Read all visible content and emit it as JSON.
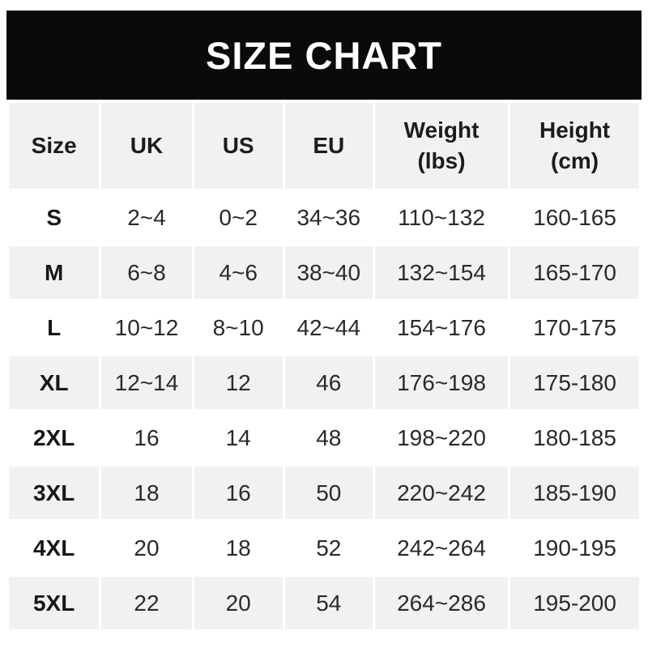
{
  "banner": {
    "title": "SIZE CHART"
  },
  "table": {
    "headers": [
      {
        "label": "Size",
        "sub": ""
      },
      {
        "label": "UK",
        "sub": ""
      },
      {
        "label": "US",
        "sub": ""
      },
      {
        "label": "EU",
        "sub": ""
      },
      {
        "label": "Weight",
        "sub": "(lbs)"
      },
      {
        "label": "Height",
        "sub": "(cm)"
      }
    ],
    "rows": [
      {
        "size": "S",
        "uk": "2~4",
        "us": "0~2",
        "eu": "34~36",
        "weight": "110~132",
        "height": "160-165"
      },
      {
        "size": "M",
        "uk": "6~8",
        "us": "4~6",
        "eu": "38~40",
        "weight": "132~154",
        "height": "165-170"
      },
      {
        "size": "L",
        "uk": "10~12",
        "us": "8~10",
        "eu": "42~44",
        "weight": "154~176",
        "height": "170-175"
      },
      {
        "size": "XL",
        "uk": "12~14",
        "us": "12",
        "eu": "46",
        "weight": "176~198",
        "height": "175-180"
      },
      {
        "size": "2XL",
        "uk": "16",
        "us": "14",
        "eu": "48",
        "weight": "198~220",
        "height": "180-185"
      },
      {
        "size": "3XL",
        "uk": "18",
        "us": "16",
        "eu": "50",
        "weight": "220~242",
        "height": "185-190"
      },
      {
        "size": "4XL",
        "uk": "20",
        "us": "18",
        "eu": "52",
        "weight": "242~264",
        "height": "190-195"
      },
      {
        "size": "5XL",
        "uk": "22",
        "us": "20",
        "eu": "54",
        "weight": "264~286",
        "height": "195-200"
      }
    ]
  },
  "colors": {
    "banner_bg": "#0a0a0a",
    "banner_text": "#ffffff",
    "row_alt_bg": "#f1f1f2",
    "text": "#2a2a2c"
  },
  "chart_data": {
    "type": "table",
    "title": "SIZE CHART",
    "columns": [
      "Size",
      "UK",
      "US",
      "EU",
      "Weight (lbs)",
      "Height (cm)"
    ],
    "rows": [
      [
        "S",
        "2~4",
        "0~2",
        "34~36",
        "110~132",
        "160-165"
      ],
      [
        "M",
        "6~8",
        "4~6",
        "38~40",
        "132~154",
        "165-170"
      ],
      [
        "L",
        "10~12",
        "8~10",
        "42~44",
        "154~176",
        "170-175"
      ],
      [
        "XL",
        "12~14",
        "12",
        "46",
        "176~198",
        "175-180"
      ],
      [
        "2XL",
        "16",
        "14",
        "48",
        "198~220",
        "180-185"
      ],
      [
        "3XL",
        "18",
        "16",
        "50",
        "220~242",
        "185-190"
      ],
      [
        "4XL",
        "20",
        "18",
        "52",
        "242~264",
        "190-195"
      ],
      [
        "5XL",
        "22",
        "20",
        "54",
        "264~286",
        "195-200"
      ]
    ],
    "layout": {
      "header_row": true,
      "alternating_row_colors": true,
      "grid": false
    }
  }
}
